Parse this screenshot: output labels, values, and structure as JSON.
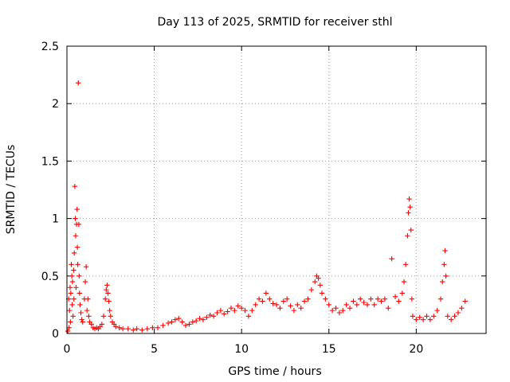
{
  "chart_data": {
    "type": "scatter",
    "title": "Day 113 of 2025, SRMTID for receiver sthl",
    "xlabel": "GPS time / hours",
    "ylabel": "SRMTID / TECUs",
    "xlim": [
      0,
      24
    ],
    "ylim": [
      0,
      2.5
    ],
    "xticks": [
      0,
      5,
      10,
      15,
      20
    ],
    "xtick_labels": [
      "0",
      "5",
      "10",
      "15",
      "20"
    ],
    "yticks": [
      0,
      0.5,
      1,
      1.5,
      2,
      2.5
    ],
    "ytick_labels": [
      "0",
      "0.5",
      "1",
      "1.5",
      "2",
      "2.5"
    ],
    "grid": true,
    "marker": "+",
    "color": "#ff0000",
    "series": [
      {
        "name": "SRMTID",
        "points": [
          [
            0.05,
            0.02
          ],
          [
            0.1,
            0.3
          ],
          [
            0.12,
            0.05
          ],
          [
            0.15,
            0.2
          ],
          [
            0.18,
            0.4
          ],
          [
            0.2,
            0.1
          ],
          [
            0.22,
            0.35
          ],
          [
            0.25,
            0.6
          ],
          [
            0.28,
            0.5
          ],
          [
            0.3,
            0.25
          ],
          [
            0.32,
            0.45
          ],
          [
            0.35,
            0.15
          ],
          [
            0.38,
            0.55
          ],
          [
            0.4,
            0.3
          ],
          [
            0.42,
            0.7
          ],
          [
            0.45,
            1.28
          ],
          [
            0.48,
            1.0
          ],
          [
            0.5,
            0.85
          ],
          [
            0.52,
            0.4
          ],
          [
            0.55,
            0.95
          ],
          [
            0.58,
            1.08
          ],
          [
            0.6,
            0.75
          ],
          [
            0.62,
            0.6
          ],
          [
            0.65,
            2.18
          ],
          [
            0.68,
            0.95
          ],
          [
            0.7,
            0.5
          ],
          [
            0.72,
            0.35
          ],
          [
            0.75,
            0.25
          ],
          [
            0.8,
            0.18
          ],
          [
            0.85,
            0.12
          ],
          [
            0.9,
            0.1
          ],
          [
            1.0,
            0.3
          ],
          [
            1.05,
            0.45
          ],
          [
            1.1,
            0.58
          ],
          [
            1.15,
            0.2
          ],
          [
            1.2,
            0.3
          ],
          [
            1.25,
            0.15
          ],
          [
            1.3,
            0.1
          ],
          [
            1.4,
            0.08
          ],
          [
            1.5,
            0.05
          ],
          [
            1.6,
            0.04
          ],
          [
            1.7,
            0.05
          ],
          [
            1.8,
            0.04
          ],
          [
            1.9,
            0.06
          ],
          [
            2.0,
            0.08
          ],
          [
            2.1,
            0.15
          ],
          [
            2.2,
            0.3
          ],
          [
            2.25,
            0.38
          ],
          [
            2.3,
            0.42
          ],
          [
            2.35,
            0.35
          ],
          [
            2.4,
            0.28
          ],
          [
            2.45,
            0.2
          ],
          [
            2.5,
            0.15
          ],
          [
            2.6,
            0.1
          ],
          [
            2.7,
            0.08
          ],
          [
            2.8,
            0.06
          ],
          [
            3.0,
            0.05
          ],
          [
            3.2,
            0.04
          ],
          [
            3.5,
            0.04
          ],
          [
            3.8,
            0.03
          ],
          [
            4.0,
            0.04
          ],
          [
            4.3,
            0.03
          ],
          [
            4.6,
            0.04
          ],
          [
            4.9,
            0.05
          ],
          [
            5.2,
            0.05
          ],
          [
            5.5,
            0.07
          ],
          [
            5.8,
            0.09
          ],
          [
            6.0,
            0.1
          ],
          [
            6.2,
            0.12
          ],
          [
            6.4,
            0.13
          ],
          [
            6.6,
            0.1
          ],
          [
            6.8,
            0.07
          ],
          [
            7.0,
            0.08
          ],
          [
            7.2,
            0.1
          ],
          [
            7.4,
            0.11
          ],
          [
            7.6,
            0.13
          ],
          [
            7.8,
            0.12
          ],
          [
            8.0,
            0.14
          ],
          [
            8.2,
            0.16
          ],
          [
            8.4,
            0.15
          ],
          [
            8.6,
            0.18
          ],
          [
            8.8,
            0.2
          ],
          [
            9.0,
            0.17
          ],
          [
            9.2,
            0.19
          ],
          [
            9.4,
            0.22
          ],
          [
            9.6,
            0.2
          ],
          [
            9.8,
            0.24
          ],
          [
            10.0,
            0.22
          ],
          [
            10.2,
            0.2
          ],
          [
            10.4,
            0.15
          ],
          [
            10.6,
            0.2
          ],
          [
            10.8,
            0.25
          ],
          [
            11.0,
            0.3
          ],
          [
            11.2,
            0.28
          ],
          [
            11.4,
            0.35
          ],
          [
            11.6,
            0.3
          ],
          [
            11.8,
            0.26
          ],
          [
            12.0,
            0.25
          ],
          [
            12.2,
            0.22
          ],
          [
            12.4,
            0.28
          ],
          [
            12.6,
            0.3
          ],
          [
            12.8,
            0.24
          ],
          [
            13.0,
            0.2
          ],
          [
            13.2,
            0.25
          ],
          [
            13.4,
            0.22
          ],
          [
            13.6,
            0.28
          ],
          [
            13.8,
            0.3
          ],
          [
            14.0,
            0.38
          ],
          [
            14.2,
            0.45
          ],
          [
            14.3,
            0.5
          ],
          [
            14.4,
            0.48
          ],
          [
            14.5,
            0.42
          ],
          [
            14.6,
            0.35
          ],
          [
            14.8,
            0.3
          ],
          [
            15.0,
            0.25
          ],
          [
            15.2,
            0.2
          ],
          [
            15.4,
            0.22
          ],
          [
            15.6,
            0.18
          ],
          [
            15.8,
            0.2
          ],
          [
            16.0,
            0.25
          ],
          [
            16.2,
            0.22
          ],
          [
            16.4,
            0.28
          ],
          [
            16.6,
            0.25
          ],
          [
            16.8,
            0.3
          ],
          [
            17.0,
            0.27
          ],
          [
            17.2,
            0.25
          ],
          [
            17.4,
            0.3
          ],
          [
            17.6,
            0.25
          ],
          [
            17.8,
            0.3
          ],
          [
            18.0,
            0.28
          ],
          [
            18.2,
            0.3
          ],
          [
            18.4,
            0.22
          ],
          [
            18.6,
            0.65
          ],
          [
            18.8,
            0.32
          ],
          [
            19.0,
            0.28
          ],
          [
            19.2,
            0.35
          ],
          [
            19.3,
            0.45
          ],
          [
            19.4,
            0.6
          ],
          [
            19.5,
            0.85
          ],
          [
            19.55,
            1.05
          ],
          [
            19.6,
            1.17
          ],
          [
            19.65,
            1.1
          ],
          [
            19.7,
            0.9
          ],
          [
            19.75,
            0.3
          ],
          [
            19.8,
            0.15
          ],
          [
            20.0,
            0.12
          ],
          [
            20.2,
            0.14
          ],
          [
            20.4,
            0.12
          ],
          [
            20.6,
            0.15
          ],
          [
            20.8,
            0.12
          ],
          [
            21.0,
            0.15
          ],
          [
            21.2,
            0.2
          ],
          [
            21.4,
            0.3
          ],
          [
            21.5,
            0.45
          ],
          [
            21.6,
            0.6
          ],
          [
            21.65,
            0.72
          ],
          [
            21.7,
            0.5
          ],
          [
            21.8,
            0.15
          ],
          [
            22.0,
            0.12
          ],
          [
            22.2,
            0.15
          ],
          [
            22.4,
            0.18
          ],
          [
            22.6,
            0.22
          ],
          [
            22.8,
            0.28
          ]
        ]
      }
    ]
  }
}
